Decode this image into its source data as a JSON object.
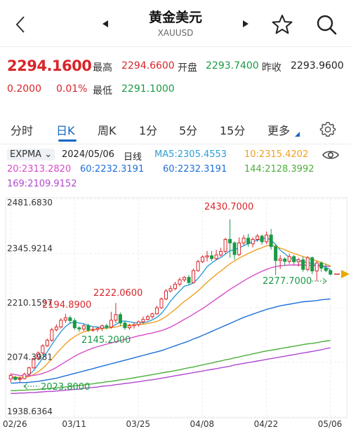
{
  "header": {
    "title": "黄金美元",
    "subtitle": "XAUUSD",
    "back_icon": "chevron-left-icon",
    "prev_icon": "triangle-left-icon",
    "next_icon": "triangle-right-icon",
    "favorite_icon": "star-icon",
    "search_icon": "search-icon"
  },
  "quote": {
    "price": "2294.1600",
    "change": "0.2000",
    "change_pct": "0.01%",
    "high_label": "最高",
    "high_value": "2294.6600",
    "open_label": "开盘",
    "open_value": "2293.7400",
    "prev_close_label": "昨收",
    "prev_close_value": "2293.9600",
    "low_label": "最低",
    "low_value": "2291.1000"
  },
  "tabs": {
    "items": [
      "分时",
      "日K",
      "周K",
      "1分",
      "5分",
      "15分",
      "更多"
    ],
    "active": "日K",
    "settings_icon": "gear-icon"
  },
  "indicator": {
    "name": "EXPMA",
    "date": "2024/05/06",
    "period": "日线",
    "ma5": "MA5:2305.4553",
    "ma10": "10:2315.4202",
    "ma20": "20:2313.2820",
    "ma60a": "60:2232.3191",
    "ma60b": "60:2232.3191",
    "ma144": "144:2128.3992",
    "ma169": "169:2109.9152",
    "visibility_icon": "eye-icon",
    "colors": {
      "ma5": "#2e9fd6",
      "ma10": "#f0a020",
      "ma20": "#d94bc8",
      "ma60a": "#1e6fd9",
      "ma60b": "#1e6fd9",
      "ma144": "#4caf3a",
      "ma169": "#b049d0"
    }
  },
  "chart_data": {
    "type": "candlestick",
    "y_ticks": [
      "2481.6830",
      "2345.9214",
      "2210.1597",
      "2074.3981",
      "1938.6364"
    ],
    "x_ticks": [
      "02/26",
      "03/11",
      "03/25",
      "04/08",
      "04/22",
      "05/06"
    ],
    "annotations": {
      "high": "2430.7000",
      "a1": "2222.0600",
      "a2": "2194.8900",
      "a3": "2145.2000",
      "a4": "2277.7000",
      "low": "2023.8000"
    },
    "up_color": "#d9252a",
    "down_color": "#1b9a45",
    "ylim": [
      1938.6364,
      2481.683
    ],
    "candles": [
      [
        2032,
        2041,
        2024,
        2045
      ],
      [
        2036,
        2031,
        2028,
        2040
      ],
      [
        2031,
        2033,
        2024,
        2038
      ],
      [
        2033,
        2044,
        2031,
        2048
      ],
      [
        2044,
        2060,
        2041,
        2063
      ],
      [
        2060,
        2083,
        2058,
        2085
      ],
      [
        2083,
        2097,
        2080,
        2101
      ],
      [
        2097,
        2115,
        2094,
        2119
      ],
      [
        2115,
        2129,
        2112,
        2133
      ],
      [
        2129,
        2155,
        2125,
        2160
      ],
      [
        2155,
        2162,
        2151,
        2169
      ],
      [
        2162,
        2179,
        2158,
        2184
      ],
      [
        2179,
        2185,
        2172,
        2195
      ],
      [
        2185,
        2178,
        2170,
        2190
      ],
      [
        2178,
        2160,
        2155,
        2184
      ],
      [
        2160,
        2157,
        2150,
        2164
      ],
      [
        2157,
        2165,
        2152,
        2169
      ],
      [
        2165,
        2154,
        2149,
        2170
      ],
      [
        2154,
        2156,
        2150,
        2163
      ],
      [
        2156,
        2159,
        2150,
        2162
      ],
      [
        2159,
        2165,
        2152,
        2168
      ],
      [
        2165,
        2162,
        2156,
        2170
      ],
      [
        2162,
        2179,
        2158,
        2200
      ],
      [
        2179,
        2193,
        2172,
        2222
      ],
      [
        2193,
        2172,
        2165,
        2198
      ],
      [
        2172,
        2160,
        2155,
        2178
      ],
      [
        2160,
        2165,
        2155,
        2170
      ],
      [
        2165,
        2168,
        2158,
        2173
      ],
      [
        2168,
        2175,
        2163,
        2178
      ],
      [
        2175,
        2181,
        2170,
        2188
      ],
      [
        2181,
        2188,
        2178,
        2192
      ],
      [
        2188,
        2195,
        2183,
        2198
      ],
      [
        2195,
        2210,
        2192,
        2215
      ],
      [
        2210,
        2232,
        2207,
        2236
      ],
      [
        2232,
        2252,
        2229,
        2257
      ],
      [
        2252,
        2258,
        2248,
        2266
      ],
      [
        2258,
        2269,
        2254,
        2275
      ],
      [
        2269,
        2280,
        2264,
        2286
      ],
      [
        2280,
        2286,
        2275,
        2289
      ],
      [
        2286,
        2273,
        2267,
        2292
      ],
      [
        2273,
        2303,
        2271,
        2308
      ],
      [
        2303,
        2325,
        2300,
        2330
      ],
      [
        2325,
        2337,
        2322,
        2341
      ],
      [
        2337,
        2340,
        2326,
        2352
      ],
      [
        2340,
        2333,
        2327,
        2352
      ],
      [
        2333,
        2342,
        2329,
        2355
      ],
      [
        2342,
        2351,
        2338,
        2360
      ],
      [
        2351,
        2381,
        2345,
        2385
      ],
      [
        2381,
        2372,
        2335,
        2431
      ],
      [
        2372,
        2343,
        2330,
        2376
      ],
      [
        2343,
        2372,
        2339,
        2386
      ],
      [
        2372,
        2384,
        2366,
        2392
      ],
      [
        2384,
        2370,
        2362,
        2395
      ],
      [
        2370,
        2381,
        2361,
        2386
      ],
      [
        2381,
        2389,
        2375,
        2394
      ],
      [
        2389,
        2375,
        2368,
        2393
      ],
      [
        2375,
        2392,
        2369,
        2401
      ],
      [
        2392,
        2363,
        2355,
        2407
      ],
      [
        2363,
        2328,
        2292,
        2368
      ],
      [
        2328,
        2332,
        2307,
        2342
      ],
      [
        2332,
        2326,
        2315,
        2336
      ],
      [
        2326,
        2338,
        2320,
        2345
      ],
      [
        2338,
        2325,
        2318,
        2342
      ],
      [
        2325,
        2330,
        2313,
        2335
      ],
      [
        2330,
        2306,
        2300,
        2338
      ],
      [
        2306,
        2335,
        2301,
        2339
      ],
      [
        2335,
        2302,
        2294,
        2338
      ],
      [
        2302,
        2322,
        2277,
        2327
      ],
      [
        2322,
        2309,
        2300,
        2326
      ],
      [
        2309,
        2303,
        2299,
        2320
      ],
      [
        2303,
        2294,
        2291,
        2305
      ]
    ],
    "series": [
      {
        "name": "MA5",
        "values": [
          2035,
          2034,
          2034,
          2036,
          2042,
          2053,
          2068,
          2084,
          2100,
          2118,
          2135,
          2150,
          2163,
          2172,
          2174,
          2172,
          2170,
          2166,
          2163,
          2162,
          2160,
          2160,
          2162,
          2168,
          2176,
          2177,
          2175,
          2173,
          2172,
          2173,
          2175,
          2180,
          2186,
          2196,
          2210,
          2227,
          2240,
          2252,
          2264,
          2267,
          2272,
          2283,
          2297,
          2313,
          2322,
          2330,
          2336,
          2344,
          2353,
          2355,
          2360,
          2365,
          2371,
          2375,
          2379,
          2382,
          2385,
          2379,
          2368,
          2354,
          2345,
          2336,
          2331,
          2328,
          2325,
          2323,
          2320,
          2318,
          2315,
          2311,
          2305
        ]
      },
      {
        "name": "MA10",
        "values": [
          2038,
          2037,
          2036,
          2036,
          2038,
          2043,
          2050,
          2059,
          2070,
          2082,
          2095,
          2108,
          2120,
          2130,
          2138,
          2145,
          2150,
          2153,
          2155,
          2157,
          2158,
          2159,
          2160,
          2162,
          2165,
          2166,
          2167,
          2167,
          2168,
          2169,
          2171,
          2173,
          2176,
          2181,
          2188,
          2197,
          2206,
          2216,
          2226,
          2234,
          2243,
          2252,
          2263,
          2274,
          2284,
          2293,
          2302,
          2311,
          2320,
          2327,
          2334,
          2340,
          2346,
          2351,
          2356,
          2360,
          2365,
          2366,
          2364,
          2359,
          2355,
          2350,
          2346,
          2342,
          2338,
          2335,
          2331,
          2327,
          2323,
          2319,
          2315
        ]
      },
      {
        "name": "MA20",
        "values": [
          2045,
          2043,
          2041,
          2040,
          2040,
          2041,
          2043,
          2046,
          2050,
          2055,
          2061,
          2068,
          2075,
          2082,
          2089,
          2095,
          2100,
          2105,
          2109,
          2113,
          2116,
          2119,
          2122,
          2125,
          2128,
          2131,
          2134,
          2137,
          2140,
          2142,
          2145,
          2147,
          2150,
          2153,
          2157,
          2162,
          2168,
          2174,
          2181,
          2187,
          2194,
          2201,
          2208,
          2216,
          2224,
          2232,
          2240,
          2248,
          2256,
          2263,
          2270,
          2277,
          2284,
          2290,
          2296,
          2301,
          2306,
          2310,
          2313,
          2315,
          2316,
          2317,
          2317,
          2317,
          2317,
          2316,
          2316,
          2315,
          2315,
          2314,
          2313
        ]
      },
      {
        "name": "60",
        "values": [
          2022,
          2022,
          2023,
          2023,
          2024,
          2025,
          2026,
          2028,
          2030,
          2032,
          2034,
          2037,
          2040,
          2043,
          2046,
          2049,
          2052,
          2055,
          2058,
          2061,
          2064,
          2067,
          2070,
          2073,
          2076,
          2079,
          2082,
          2085,
          2088,
          2091,
          2094,
          2097,
          2100,
          2103,
          2107,
          2111,
          2115,
          2119,
          2123,
          2127,
          2132,
          2136,
          2141,
          2146,
          2151,
          2156,
          2161,
          2166,
          2171,
          2176,
          2181,
          2186,
          2190,
          2194,
          2198,
          2202,
          2206,
          2209,
          2212,
          2215,
          2217,
          2219,
          2221,
          2223,
          2225,
          2226,
          2227,
          2228,
          2230,
          2231,
          2232
        ]
      },
      {
        "name": "144",
        "values": [
          2003,
          2003,
          2004,
          2004,
          2005,
          2005,
          2006,
          2007,
          2008,
          2009,
          2010,
          2011,
          2012,
          2013,
          2015,
          2016,
          2017,
          2019,
          2020,
          2022,
          2023,
          2025,
          2026,
          2028,
          2030,
          2031,
          2033,
          2035,
          2037,
          2039,
          2041,
          2043,
          2045,
          2047,
          2049,
          2051,
          2053,
          2055,
          2058,
          2060,
          2062,
          2065,
          2067,
          2070,
          2072,
          2075,
          2077,
          2080,
          2082,
          2085,
          2087,
          2090,
          2092,
          2095,
          2097,
          2100,
          2102,
          2104,
          2106,
          2108,
          2110,
          2112,
          2114,
          2116,
          2118,
          2120,
          2121,
          2123,
          2125,
          2127,
          2128
        ]
      },
      {
        "name": "169",
        "values": [
          1996,
          1996,
          1997,
          1997,
          1998,
          1998,
          1999,
          2000,
          2001,
          2001,
          2002,
          2003,
          2004,
          2005,
          2006,
          2007,
          2009,
          2010,
          2011,
          2012,
          2014,
          2015,
          2016,
          2018,
          2019,
          2021,
          2022,
          2024,
          2025,
          2027,
          2029,
          2030,
          2032,
          2034,
          2036,
          2038,
          2040,
          2042,
          2044,
          2046,
          2048,
          2050,
          2052,
          2054,
          2056,
          2058,
          2060,
          2062,
          2064,
          2067,
          2069,
          2071,
          2073,
          2075,
          2077,
          2079,
          2081,
          2083,
          2085,
          2087,
          2089,
          2091,
          2093,
          2095,
          2097,
          2099,
          2101,
          2103,
          2105,
          2108,
          2110
        ]
      }
    ]
  }
}
